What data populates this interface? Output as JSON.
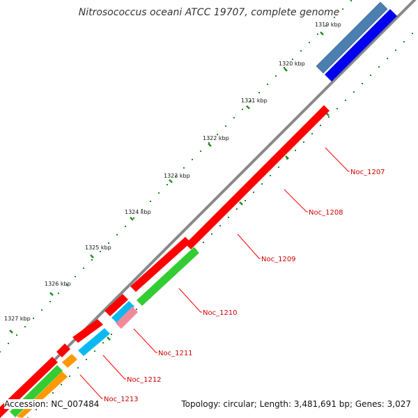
{
  "title": "Nitrosococcus oceani ATCC 19707, complete genome",
  "accession_text": "Accession: NC_007484",
  "topology_text": "Topology: circular; Length: 3,481,691 bp; Genes: 3,027",
  "colors": {
    "backbone": "#888888",
    "cds_red": "#ff0000",
    "cds_green": "#33cc33",
    "cds_cyan": "#0bb9f1",
    "cds_pink": "#f08a9a",
    "cds_orange": "#ff9900",
    "cds_blue": "#0000ee",
    "cds_steelblue": "#4a7fb0",
    "tick_green": "#1f8a1f",
    "label_red": "#cc0000"
  },
  "ticks": [
    {
      "label": "1319 kbp"
    },
    {
      "label": "1320 kbp"
    },
    {
      "label": "1321 kbp"
    },
    {
      "label": "1322 kbp"
    },
    {
      "label": "1323 kbp"
    },
    {
      "label": "1324 kbp"
    },
    {
      "label": "1325 kbp"
    },
    {
      "label": "1326 kbp"
    },
    {
      "label": "1327 kbp"
    }
  ],
  "genes": [
    {
      "label": "Noc_1207"
    },
    {
      "label": "Noc_1208"
    },
    {
      "label": "Noc_1209"
    },
    {
      "label": "Noc_1210"
    },
    {
      "label": "Noc_1211"
    },
    {
      "label": "Noc_1212"
    },
    {
      "label": "Noc_1213"
    }
  ]
}
